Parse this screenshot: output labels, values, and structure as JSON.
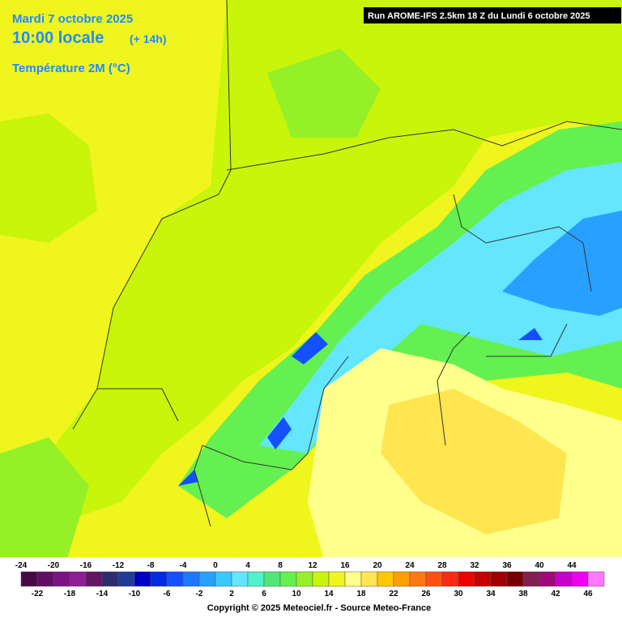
{
  "header": {
    "date": "Mardi 7 octobre 2025",
    "time": "10:00 locale",
    "lead": "(+ 14h)",
    "field": "Température 2M (°C)",
    "run": "Run AROME-IFS 2.5km 18 Z du Lundi 6 octobre 2025"
  },
  "legend": [
    {
      "value": -24,
      "color": "#460a46"
    },
    {
      "value": -22,
      "color": "#5f0f64"
    },
    {
      "value": -20,
      "color": "#7a1482"
    },
    {
      "value": -18,
      "color": "#8c1e96"
    },
    {
      "value": -16,
      "color": "#641464"
    },
    {
      "value": -14,
      "color": "#2d2d6e"
    },
    {
      "value": -12,
      "color": "#1e3c96"
    },
    {
      "value": -10,
      "color": "#0000c8"
    },
    {
      "value": -8,
      "color": "#0028e6"
    },
    {
      "value": -6,
      "color": "#1450ff"
    },
    {
      "value": -4,
      "color": "#1e78ff"
    },
    {
      "value": -2,
      "color": "#28a0ff"
    },
    {
      "value": 0,
      "color": "#3cc8ff"
    },
    {
      "value": 2,
      "color": "#64e6ff"
    },
    {
      "value": 4,
      "color": "#50f0c8"
    },
    {
      "value": 6,
      "color": "#50e678"
    },
    {
      "value": 8,
      "color": "#64f050"
    },
    {
      "value": 10,
      "color": "#96f028"
    },
    {
      "value": 12,
      "color": "#c8f50a"
    },
    {
      "value": 14,
      "color": "#f0f51e"
    },
    {
      "value": 16,
      "color": "#ffff8c"
    },
    {
      "value": 18,
      "color": "#ffe650"
    },
    {
      "value": 20,
      "color": "#ffc800"
    },
    {
      "value": 22,
      "color": "#ffa000"
    },
    {
      "value": 24,
      "color": "#ff7814"
    },
    {
      "value": 26,
      "color": "#ff5014"
    },
    {
      "value": 28,
      "color": "#ff2814"
    },
    {
      "value": 30,
      "color": "#f00000"
    },
    {
      "value": 32,
      "color": "#c80000"
    },
    {
      "value": 34,
      "color": "#a00000"
    },
    {
      "value": 36,
      "color": "#780000"
    },
    {
      "value": 38,
      "color": "#821e50"
    },
    {
      "value": 40,
      "color": "#a00a78"
    },
    {
      "value": 42,
      "color": "#c800c8"
    },
    {
      "value": 44,
      "color": "#f000f0"
    },
    {
      "value": 46,
      "color": "#ff78ff"
    }
  ],
  "footer": {
    "copyright": "Copyright © 2025 Meteociel.fr - Source Meteo-France"
  }
}
